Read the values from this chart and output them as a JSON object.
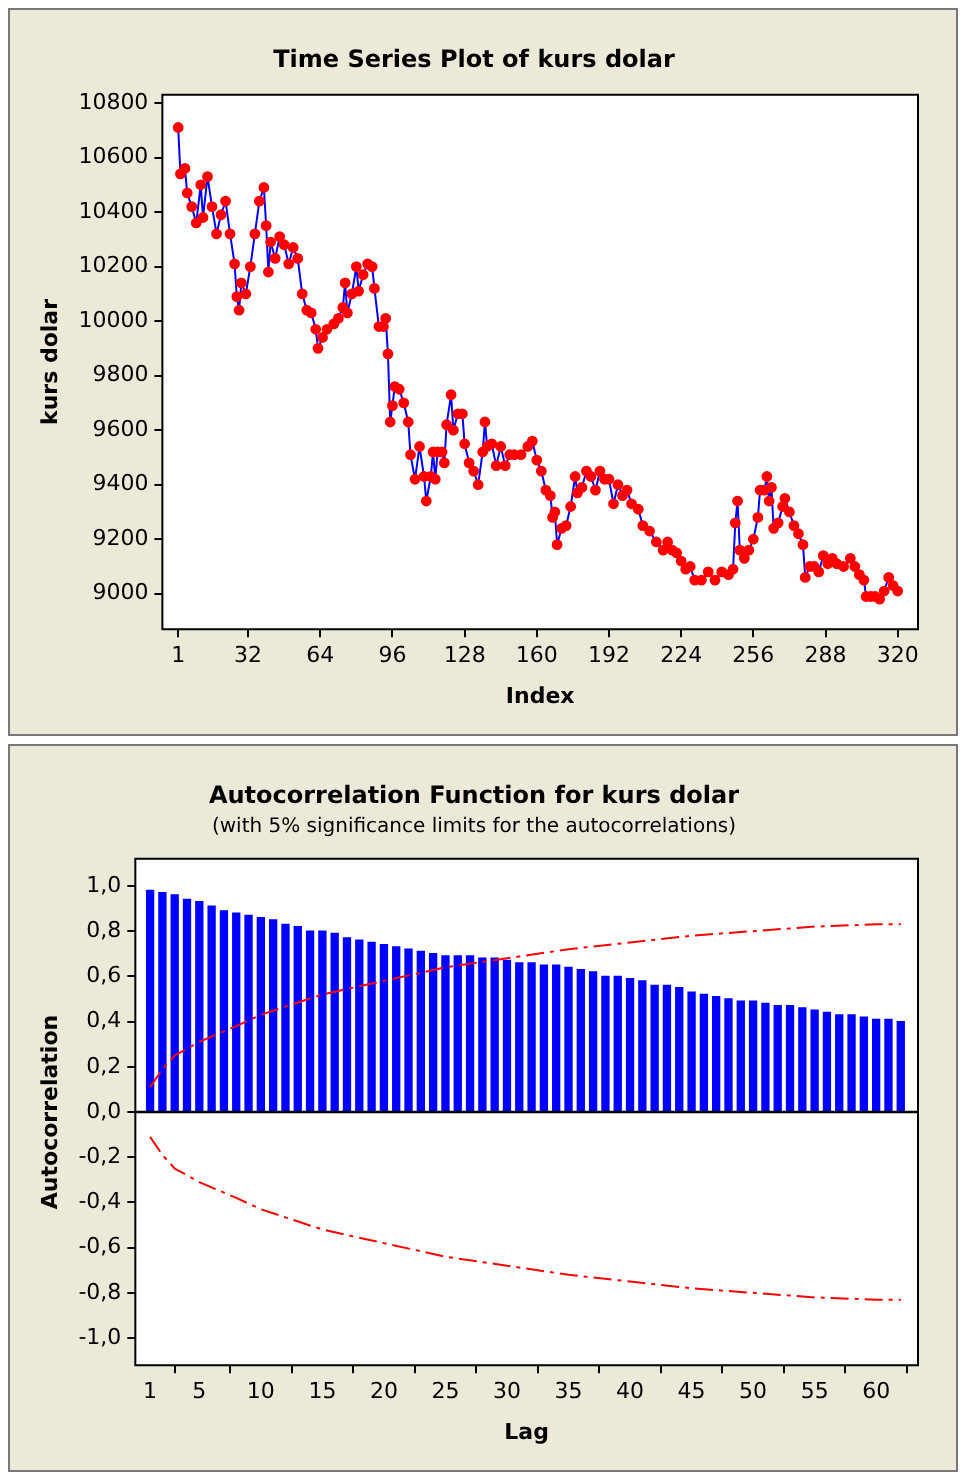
{
  "chart_data": [
    {
      "type": "line",
      "title": "Time Series Plot of kurs dolar",
      "xlabel": "Index",
      "ylabel": "kurs dolar",
      "marker": "circle",
      "x": [
        1,
        2,
        4,
        5,
        7,
        9,
        11,
        12,
        14,
        16,
        18,
        20,
        22,
        24,
        26,
        27,
        28,
        29,
        31,
        33,
        35,
        37,
        39,
        40,
        41,
        42,
        44,
        46,
        48,
        50,
        52,
        54,
        56,
        58,
        60,
        62,
        63,
        65,
        67,
        70,
        72,
        74,
        75,
        76,
        78,
        80,
        81,
        83,
        85,
        87,
        88,
        90,
        92,
        93,
        94,
        95,
        96,
        97,
        99,
        101,
        103,
        104,
        106,
        108,
        110,
        111,
        113,
        114,
        115,
        116,
        118,
        119,
        120,
        122,
        123,
        125,
        127,
        128,
        130,
        132,
        134,
        136,
        137,
        138,
        140,
        142,
        144,
        146,
        148,
        150,
        153,
        156,
        158,
        160,
        162,
        164,
        166,
        167,
        168,
        169,
        171,
        173,
        175,
        177,
        178,
        180,
        182,
        184,
        186,
        188,
        190,
        192,
        194,
        196,
        198,
        200,
        202,
        205,
        207,
        210,
        213,
        216,
        218,
        220,
        222,
        224,
        226,
        228,
        230,
        233,
        236,
        239,
        242,
        245,
        247,
        248,
        249,
        250,
        252,
        254,
        256,
        258,
        259,
        261,
        262,
        263,
        264,
        265,
        267,
        269,
        270,
        272,
        274,
        276,
        278,
        279,
        281,
        283,
        285,
        287,
        289,
        291,
        293,
        296,
        299,
        301,
        303,
        305,
        306,
        308,
        310,
        312,
        314,
        316,
        318,
        320
      ],
      "series": [
        {
          "color": "#0000ff",
          "colors": [
            "#ff0000",
            "#ff0000",
            "#ff0000",
            "#ff0000",
            "#ff0000",
            "#ff0000",
            "#ff0000",
            "#ff0000",
            "#ff0000",
            "#ff0000",
            "#ff0000",
            "#ff0000",
            "#ff0000",
            "#ff0000",
            "#ff0000",
            "#ff0000",
            "#ff0000",
            "#ff0000",
            "#ff0000",
            "#ff0000",
            "#ff0000",
            "#ff0000",
            "#ff0000",
            "#ff0000",
            "#ff0000",
            "#ff0000",
            "#ff0000",
            "#ff0000",
            "#ff0000",
            "#ff0000",
            "#ff0000",
            "#ff0000",
            "#ff0000",
            "#ff0000",
            "#ff0000",
            "#ff0000",
            "#ff0000",
            "#ff0000",
            "#ff0000",
            "#ff0000",
            "#ff0000",
            "#ff0000",
            "#ff0000",
            "#ff0000",
            "#ff0000",
            "#ff0000",
            "#ff0000",
            "#ff0000",
            "#ff0000",
            "#ff0000",
            "#ff0000",
            "#ff0000",
            "#ff0000",
            "#ff0000",
            "#ff0000",
            "#ff0000",
            "#ff0000",
            "#ff0000",
            "#ff0000",
            "#ff0000",
            "#ff0000",
            "#ff0000",
            "#ff0000",
            "#ff0000",
            "#ff0000",
            "#ff0000",
            "#ff0000",
            "#ff0000",
            "#ff0000",
            "#ff0000",
            "#ff0000",
            "#ff0000",
            "#ff0000",
            "#ff0000",
            "#ff0000",
            "#ff0000",
            "#ff0000",
            "#ff0000",
            "#ff0000",
            "#ff0000",
            "#ff0000",
            "#ff0000",
            "#ff0000",
            "#ff0000",
            "#ff0000",
            "#ff0000",
            "#ff0000",
            "#ff0000",
            "#ff0000",
            "#ff0000",
            "#ff0000",
            "#ff0000",
            "#ff0000",
            "#ff0000",
            "#ff0000",
            "#ff0000",
            "#ff0000",
            "#ff0000",
            "#ff0000",
            "#ff0000",
            "#ff0000",
            "#ff0000",
            "#ff0000",
            "#ff0000",
            "#ff0000",
            "#ff0000",
            "#ff0000",
            "#ff0000",
            "#ff0000",
            "#ff0000",
            "#ff0000",
            "#ff0000",
            "#ff0000",
            "#ff0000",
            "#ff0000",
            "#ff0000",
            "#ff0000",
            "#ff0000",
            "#ff0000",
            "#ff0000",
            "#ff0000",
            "#ff0000",
            "#ff0000",
            "#ff0000",
            "#ff0000",
            "#ff0000",
            "#ff0000",
            "#ff0000",
            "#ff0000",
            "#ff0000",
            "#ff0000",
            "#ff0000",
            "#ff0000",
            "#ff0000",
            "#ff0000",
            "#ff0000",
            "#ff0000",
            "#ff0000",
            "#ff0000",
            "#ff0000",
            "#ff0000",
            "#ff0000",
            "#ff0000",
            "#ff0000",
            "#ff0000",
            "#ff0000",
            "#ff0000",
            "#ff0000",
            "#ff0000",
            "#ff0000",
            "#ff0000",
            "#ff0000",
            "#ff0000",
            "#ff0000",
            "#ff0000",
            "#ff0000",
            "#ff0000",
            "#ff0000",
            "#ff0000",
            "#ff0000",
            "#ff0000",
            "#ff0000",
            "#ff0000",
            "#ff0000",
            "#ff0000",
            "#ff0000",
            "#ff0000",
            "#ff0000",
            "#ff0000",
            "#ff0000",
            "#ff0000",
            "#ff0000",
            "#ff0000",
            "#ff0000",
            "#ff0000",
            "#ff0000"
          ],
          "values": [
            10710,
            10540,
            10560,
            10470,
            10420,
            10360,
            10500,
            10380,
            10530,
            10420,
            10320,
            10390,
            10440,
            10320,
            10210,
            10090,
            10040,
            10140,
            10100,
            10200,
            10320,
            10440,
            10490,
            10350,
            10180,
            10290,
            10230,
            10310,
            10280,
            10210,
            10270,
            10230,
            10100,
            10040,
            10030,
            9970,
            9900,
            9940,
            9970,
            9990,
            10010,
            10050,
            10140,
            10030,
            10100,
            10200,
            10110,
            10170,
            10210,
            10200,
            10120,
            9980,
            9980,
            10010,
            9880,
            9630,
            9690,
            9760,
            9750,
            9700,
            9630,
            9510,
            9420,
            9540,
            9430,
            9340,
            9430,
            9520,
            9420,
            9520,
            9520,
            9480,
            9620,
            9730,
            9600,
            9660,
            9660,
            9550,
            9480,
            9450,
            9400,
            9520,
            9630,
            9540,
            9550,
            9470,
            9540,
            9470,
            9510,
            9510,
            9510,
            9540,
            9560,
            9490,
            9450,
            9380,
            9360,
            9280,
            9300,
            9180,
            9240,
            9250,
            9320,
            9430,
            9370,
            9390,
            9450,
            9430,
            9380,
            9450,
            9420,
            9420,
            9330,
            9400,
            9360,
            9380,
            9330,
            9310,
            9250,
            9230,
            9190,
            9160,
            9190,
            9160,
            9150,
            9120,
            9090,
            9100,
            9050,
            9050,
            9080,
            9050,
            9080,
            9070,
            9090,
            9260,
            9340,
            9160,
            9130,
            9160,
            9200,
            9280,
            9380,
            9380,
            9430,
            9340,
            9390,
            9240,
            9260,
            9320,
            9350,
            9300,
            9250,
            9220,
            9180,
            9060,
            9100,
            9100,
            9080,
            9140,
            9110,
            9130,
            9110,
            9100,
            9130,
            9100,
            9070,
            9050,
            8990,
            8990,
            8990,
            8980,
            9010,
            9060,
            9030,
            9010
          ]
        }
      ],
      "xlim": [
        -6,
        329
      ],
      "xticks": [
        1,
        32,
        64,
        96,
        128,
        160,
        192,
        224,
        256,
        288,
        320
      ],
      "ylim": [
        8870,
        10830
      ],
      "yticks": [
        9000,
        9200,
        9400,
        9600,
        9800,
        10000,
        10200,
        10400,
        10600,
        10800
      ]
    },
    {
      "type": "bar",
      "title": "Autocorrelation Function for kurs dolar",
      "subtitle": "(with 5% significance limits for the autocorrelations)",
      "xlabel": "Lag",
      "ylabel": "Autocorrelation",
      "x": [
        1,
        2,
        3,
        4,
        5,
        6,
        7,
        8,
        9,
        10,
        11,
        12,
        13,
        14,
        15,
        16,
        17,
        18,
        19,
        20,
        21,
        22,
        23,
        24,
        25,
        26,
        27,
        28,
        29,
        30,
        31,
        32,
        33,
        34,
        35,
        36,
        37,
        38,
        39,
        40,
        41,
        42,
        43,
        44,
        45,
        46,
        47,
        48,
        49,
        50,
        51,
        52,
        53,
        54,
        55,
        56,
        57,
        58,
        59,
        60,
        61,
        62
      ],
      "series": [
        {
          "color": "#0000ff",
          "values": [
            0.98,
            0.97,
            0.96,
            0.94,
            0.93,
            0.91,
            0.89,
            0.88,
            0.87,
            0.86,
            0.85,
            0.83,
            0.82,
            0.8,
            0.8,
            0.79,
            0.77,
            0.76,
            0.75,
            0.74,
            0.73,
            0.72,
            0.71,
            0.7,
            0.69,
            0.69,
            0.69,
            0.68,
            0.68,
            0.67,
            0.66,
            0.66,
            0.65,
            0.65,
            0.64,
            0.63,
            0.62,
            0.6,
            0.6,
            0.59,
            0.58,
            0.56,
            0.56,
            0.55,
            0.53,
            0.52,
            0.51,
            0.5,
            0.49,
            0.49,
            0.48,
            0.47,
            0.47,
            0.46,
            0.45,
            0.44,
            0.43,
            0.43,
            0.42,
            0.41,
            0.41,
            0.4
          ]
        },
        {
          "type": "line",
          "color": "#ff0000",
          "line_style": "dashed",
          "x": [
            1,
            2,
            3,
            5,
            8,
            10,
            15,
            20,
            25,
            30,
            35,
            40,
            45,
            50,
            55,
            60,
            62
          ],
          "values": [
            0.11,
            0.19,
            0.25,
            0.31,
            0.38,
            0.43,
            0.52,
            0.58,
            0.64,
            0.68,
            0.72,
            0.75,
            0.78,
            0.8,
            0.82,
            0.83,
            0.83
          ]
        },
        {
          "type": "line",
          "color": "#ff0000",
          "line_style": "dashed",
          "x": [
            1,
            2,
            3,
            5,
            8,
            10,
            15,
            20,
            25,
            30,
            35,
            40,
            45,
            50,
            55,
            60,
            62
          ],
          "values": [
            -0.11,
            -0.19,
            -0.25,
            -0.31,
            -0.38,
            -0.43,
            -0.52,
            -0.58,
            -0.64,
            -0.68,
            -0.72,
            -0.75,
            -0.78,
            -0.8,
            -0.82,
            -0.83,
            -0.83
          ]
        }
      ],
      "ref_lines": [
        {
          "axis": "y",
          "value": 0,
          "color": "#000000"
        }
      ],
      "xlim": [
        -0.2,
        63.4
      ],
      "xticks": [
        1,
        5,
        10,
        15,
        20,
        25,
        30,
        35,
        40,
        45,
        50,
        55,
        60
      ],
      "ylim": [
        -1.12,
        1.12
      ],
      "yticks": [
        {
          "value": -1,
          "label": "-1,0"
        },
        {
          "value": -0.8,
          "label": "-0,8"
        },
        {
          "value": -0.6,
          "label": "-0,6"
        },
        {
          "value": -0.4,
          "label": "-0,4"
        },
        {
          "value": -0.2,
          "label": "-0,2"
        },
        {
          "value": 0,
          "label": "0,0"
        },
        {
          "value": 0.2,
          "label": "0,2"
        },
        {
          "value": 0.4,
          "label": "0,4"
        },
        {
          "value": 0.6,
          "label": "0,6"
        },
        {
          "value": 0.8,
          "label": "0,8"
        },
        {
          "value": 1,
          "label": "1,0"
        }
      ]
    }
  ]
}
